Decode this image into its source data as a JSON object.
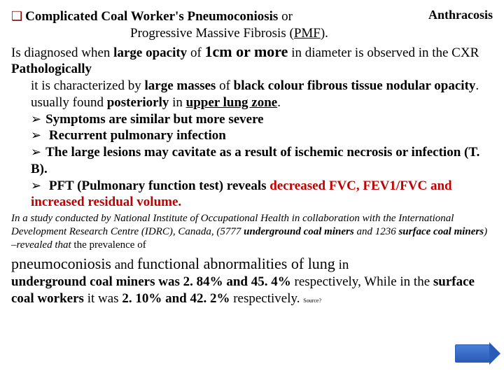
{
  "header": {
    "label": "Anthracosis"
  },
  "title": {
    "l1_bold": "Complicated Coal Worker's Pneumoconiosis",
    "l1_rest": " or",
    "l2_a": "Progressive Massive Fibrosis (",
    "l2_u": "PMF",
    "l2_b": ")."
  },
  "diag": {
    "a": "Is diagnosed when ",
    "b": "large opacity",
    "c": " of ",
    "d": "1cm or more",
    "e": " in diameter is observed in the CXR"
  },
  "path": {
    "hdr": "Pathologically",
    "a": "it is characterized by ",
    "b": "large masses",
    "c": " of ",
    "d": "black colour  fibrous tissue nodular opacity",
    "e": ". usually found ",
    "f": "posteriorly",
    "g": " in ",
    "h": "upper lung zone",
    "i": "."
  },
  "b1": {
    "a": "Symptoms are similar but ",
    "b": "more severe"
  },
  "b2": {
    "a": " Recurrent pulmonary ",
    "b": "infection"
  },
  "b3": {
    "a": "The large lesions ",
    "b": "may cavitate",
    "c": " as a result of ",
    "d": "ischemic necrosis or infection (T. B)",
    "e": "."
  },
  "b4": {
    "a": " PFT (Pulmonary function test) reveals ",
    "b": "decreased FVC, FEV1/FVC and increased residual volume."
  },
  "study": {
    "a": "In a study conducted by National Institute of Occupational Health in collaboration with the International Development Research Centre (IDRC), Canada, (5777 ",
    "b": "underground coal miners",
    "c": " and 1236 ",
    "d": "surface coal miners",
    "e": ") –revealed that ",
    "f": "the prevalence of"
  },
  "concl": {
    "a": "pneumoconiosis",
    "b": " and ",
    "c": "functional abnormalities of lung",
    "d": " in",
    "e": " underground coal miners was 2. 84% and 45. 4%",
    "f": " respectively, ",
    "g": "While  in the ",
    "h": "surface coal workers",
    "i": " it was ",
    "j": "2. 10% and 42. 2%",
    "k": " respectively. ",
    "src": "Source?"
  }
}
